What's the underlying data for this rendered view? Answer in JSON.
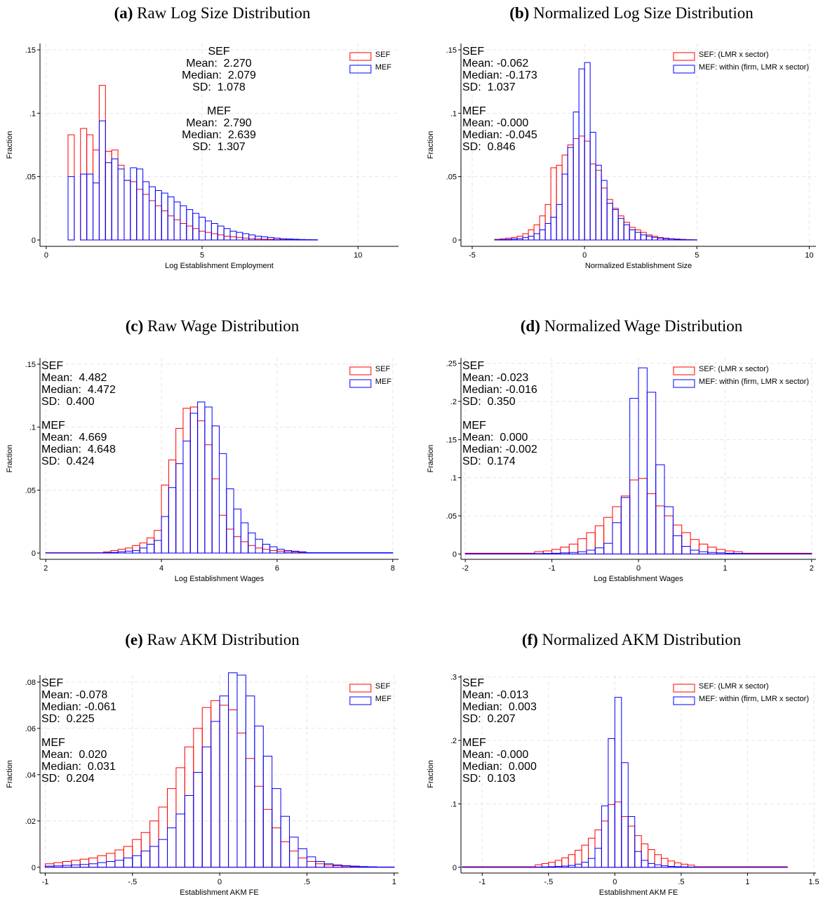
{
  "chart_data": [
    {
      "type": "histogram",
      "label": "(a)",
      "title": "Raw Log Size Distribution",
      "xlabel": "Log Establishment Employment",
      "ylabel": "Fraction",
      "xlim": [
        -0.2,
        11.3
      ],
      "ylim": [
        -0.005,
        0.155
      ],
      "xticks": [
        0,
        5,
        10
      ],
      "yticks": [
        0,
        {
          "value": 0.05,
          "label": ".05"
        },
        {
          "value": 0.1,
          "label": ".1"
        },
        {
          "value": 0.15,
          "label": ".15"
        }
      ],
      "grid": true,
      "legend_position": "top-right",
      "bins": [
        0.7,
        0.9,
        1.1,
        1.3,
        1.5,
        1.7,
        1.9,
        2.1,
        2.3,
        2.5,
        2.7,
        2.9,
        3.1,
        3.3,
        3.5,
        3.7,
        3.9,
        4.1,
        4.3,
        4.5,
        4.7,
        4.9,
        5.1,
        5.3,
        5.5,
        5.7,
        5.9,
        6.1,
        6.3,
        6.5,
        6.7,
        6.9,
        7.1,
        7.3,
        7.5,
        7.7,
        7.9,
        8.1,
        8.3,
        8.5,
        8.7
      ],
      "series": [
        {
          "name": "SEF",
          "color": "#ff0000",
          "values": [
            0.083,
            0,
            0.088,
            0.083,
            0.071,
            0.122,
            0.07,
            0.071,
            0.059,
            0.047,
            0.046,
            0.04,
            0.036,
            0.031,
            0.027,
            0.023,
            0.019,
            0.016,
            0.013,
            0.011,
            0.009,
            0.007,
            0.006,
            0.005,
            0.004,
            0.003,
            0.0025,
            0.002,
            0.0015,
            0.001,
            0.0008,
            0.0006,
            0.0005,
            0.0004,
            0.0003,
            0.0002,
            0.0002,
            0.0001,
            0.0001,
            0.0001
          ]
        },
        {
          "name": "MEF",
          "color": "#0000ff",
          "values": [
            0.05,
            0,
            0.052,
            0.052,
            0.045,
            0.094,
            0.061,
            0.064,
            0.056,
            0.047,
            0.057,
            0.056,
            0.046,
            0.042,
            0.039,
            0.037,
            0.034,
            0.03,
            0.027,
            0.024,
            0.021,
            0.018,
            0.015,
            0.013,
            0.011,
            0.009,
            0.007,
            0.006,
            0.005,
            0.004,
            0.003,
            0.0025,
            0.002,
            0.0015,
            0.001,
            0.0008,
            0.0006,
            0.0004,
            0.0003,
            0.0002
          ]
        }
      ],
      "annotations": [
        {
          "lines": [
            "SEF",
            "Mean:  2.270",
            "Median:  2.079",
            "SD:  1.078"
          ]
        },
        {
          "lines": [
            "MEF",
            "Mean:  2.790",
            "Median:  2.639",
            "SD:  1.307"
          ]
        }
      ]
    },
    {
      "type": "histogram",
      "label": "(b)",
      "title": "Normalized Log Size Distribution",
      "xlabel": "Normalized Establishment Size",
      "ylabel": "Fraction",
      "xlim": [
        -5.5,
        10.3
      ],
      "ylim": [
        -0.005,
        0.155
      ],
      "xticks": [
        -5,
        0,
        5,
        10
      ],
      "yticks": [
        0,
        {
          "value": 0.05,
          "label": ".05"
        },
        {
          "value": 0.1,
          "label": ".1"
        },
        {
          "value": 0.15,
          "label": ".15"
        }
      ],
      "grid": true,
      "legend_position": "top-right",
      "bins": [
        -4,
        -3.75,
        -3.5,
        -3.25,
        -3,
        -2.75,
        -2.5,
        -2.25,
        -2,
        -1.75,
        -1.5,
        -1.25,
        -1,
        -0.75,
        -0.5,
        -0.25,
        0,
        0.25,
        0.5,
        0.75,
        1,
        1.25,
        1.5,
        1.75,
        2,
        2.25,
        2.5,
        2.75,
        3,
        3.25,
        3.5,
        3.75,
        4,
        4.25,
        4.5,
        4.75,
        5
      ],
      "series": [
        {
          "name": "SEF: (LMR x sector)",
          "color": "#ff0000",
          "values": [
            0.0005,
            0.001,
            0.0015,
            0.002,
            0.003,
            0.005,
            0.008,
            0.012,
            0.019,
            0.028,
            0.057,
            0.059,
            0.067,
            0.075,
            0.08,
            0.082,
            0.078,
            0.06,
            0.055,
            0.041,
            0.032,
            0.025,
            0.019,
            0.014,
            0.01,
            0.008,
            0.006,
            0.004,
            0.003,
            0.002,
            0.0015,
            0.001,
            0.0008,
            0.0005,
            0.0003,
            0.0002
          ]
        },
        {
          "name": "MEF: within (firm, LMR x sector)",
          "color": "#0000ff",
          "values": [
            0.0002,
            0.0003,
            0.0005,
            0.0008,
            0.001,
            0.002,
            0.003,
            0.005,
            0.008,
            0.013,
            0.018,
            0.028,
            0.052,
            0.073,
            0.101,
            0.135,
            0.14,
            0.085,
            0.059,
            0.047,
            0.029,
            0.024,
            0.017,
            0.012,
            0.008,
            0.006,
            0.004,
            0.003,
            0.002,
            0.0015,
            0.001,
            0.0008,
            0.0005,
            0.0003,
            0.0002,
            0.0001
          ]
        }
      ],
      "annotations": [
        {
          "lines": [
            "SEF",
            "Mean: -0.062",
            "Median: -0.173",
            "SD:  1.037"
          ]
        },
        {
          "lines": [
            "MEF",
            "Mean: -0.000",
            "Median: -0.045",
            "SD:  0.846"
          ]
        }
      ]
    },
    {
      "type": "histogram",
      "label": "(c)",
      "title": "Raw Wage Distribution",
      "xlabel": "Log Establishment Wages",
      "ylabel": "Fraction",
      "xlim": [
        1.9,
        8.1
      ],
      "ylim": [
        -0.005,
        0.155
      ],
      "xticks": [
        2,
        4,
        6,
        8
      ],
      "yticks": [
        0,
        {
          "value": 0.05,
          "label": ".05"
        },
        {
          "value": 0.1,
          "label": ".1"
        },
        {
          "value": 0.15,
          "label": ".15"
        }
      ],
      "grid": true,
      "legend_position": "top-right",
      "bins": [
        2,
        3,
        3.125,
        3.25,
        3.375,
        3.5,
        3.625,
        3.75,
        3.875,
        4,
        4.125,
        4.25,
        4.375,
        4.5,
        4.625,
        4.75,
        4.875,
        5,
        5.125,
        5.25,
        5.375,
        5.5,
        5.625,
        5.75,
        5.875,
        6,
        6.125,
        6.25,
        6.375,
        6.5,
        8
      ],
      "series": [
        {
          "name": "SEF",
          "color": "#ff0000",
          "values": [
            0.0003,
            0.001,
            0.002,
            0.003,
            0.004,
            0.006,
            0.008,
            0.012,
            0.018,
            0.054,
            0.074,
            0.099,
            0.115,
            0.116,
            0.105,
            0.086,
            0.059,
            0.03,
            0.019,
            0.013,
            0.009,
            0.006,
            0.004,
            0.003,
            0.002,
            0.0015,
            0.001,
            0.0008,
            0.0005,
            0.0002
          ]
        },
        {
          "name": "MEF",
          "color": "#0000ff",
          "values": [
            0.0001,
            0.0003,
            0.0005,
            0.001,
            0.0015,
            0.002,
            0.004,
            0.007,
            0.01,
            0.029,
            0.052,
            0.071,
            0.089,
            0.111,
            0.12,
            0.116,
            0.101,
            0.079,
            0.051,
            0.035,
            0.024,
            0.016,
            0.011,
            0.007,
            0.005,
            0.003,
            0.002,
            0.0015,
            0.001,
            0.0003
          ]
        }
      ],
      "annotations": [
        {
          "lines": [
            "SEF",
            "Mean:  4.482",
            "Median:  4.472",
            "SD:  0.400"
          ]
        },
        {
          "lines": [
            "MEF",
            "Mean:  4.669",
            "Median:  4.648",
            "SD:  0.424"
          ]
        }
      ]
    },
    {
      "type": "histogram",
      "label": "(d)",
      "title": "Normalized Wage Distribution",
      "xlabel": "Log Establishment Wages",
      "ylabel": "Fraction",
      "xlim": [
        -2.05,
        2.05
      ],
      "ylim": [
        -0.007,
        0.257
      ],
      "xticks": [
        -2,
        -1,
        0,
        1,
        2
      ],
      "yticks": [
        0,
        {
          "value": 0.05,
          "label": ".05"
        },
        {
          "value": 0.1,
          "label": ".1"
        },
        {
          "value": 0.15,
          "label": ".15"
        },
        {
          "value": 0.2,
          "label": ".2"
        },
        {
          "value": 0.25,
          "label": ".25"
        }
      ],
      "grid": true,
      "legend_position": "top-right",
      "bins": [
        -2,
        -1.2,
        -1.1,
        -1,
        -0.9,
        -0.8,
        -0.7,
        -0.6,
        -0.5,
        -0.4,
        -0.3,
        -0.2,
        -0.1,
        0,
        0.1,
        0.2,
        0.3,
        0.4,
        0.5,
        0.6,
        0.7,
        0.8,
        0.9,
        1,
        1.1,
        1.2,
        2
      ],
      "series": [
        {
          "name": "SEF: (LMR x sector)",
          "color": "#ff0000",
          "values": [
            0.001,
            0.003,
            0.004,
            0.006,
            0.009,
            0.013,
            0.02,
            0.028,
            0.037,
            0.048,
            0.062,
            0.076,
            0.097,
            0.099,
            0.079,
            0.063,
            0.05,
            0.038,
            0.028,
            0.019,
            0.013,
            0.009,
            0.006,
            0.004,
            0.003,
            0.001
          ]
        },
        {
          "name": "MEF: within (firm, LMR x sector)",
          "color": "#0000ff",
          "values": [
            0.0003,
            0.0005,
            0.0007,
            0.001,
            0.0015,
            0.002,
            0.003,
            0.005,
            0.008,
            0.014,
            0.041,
            0.074,
            0.204,
            0.244,
            0.212,
            0.117,
            0.062,
            0.024,
            0.01,
            0.005,
            0.003,
            0.002,
            0.0015,
            0.001,
            0.0007,
            0.0003
          ]
        }
      ],
      "annotations": [
        {
          "lines": [
            "SEF",
            "Mean: -0.023",
            "Median: -0.016",
            "SD:  0.350"
          ]
        },
        {
          "lines": [
            "MEF",
            "Mean:  0.000",
            "Median: -0.002",
            "SD:  0.174"
          ]
        }
      ]
    },
    {
      "type": "histogram",
      "label": "(e)",
      "title": "Raw AKM Distribution",
      "xlabel": "Establishment AKM FE",
      "ylabel": "Fraction",
      "xlim": [
        -1.03,
        1.025
      ],
      "ylim": [
        -0.0025,
        0.083
      ],
      "xticks": [
        -1,
        {
          "value": -0.5,
          "label": "-.5"
        },
        0,
        {
          "value": 0.5,
          "label": ".5"
        },
        1
      ],
      "yticks": [
        0,
        {
          "value": 0.02,
          "label": ".02"
        },
        {
          "value": 0.04,
          "label": ".04"
        },
        {
          "value": 0.06,
          "label": ".06"
        },
        {
          "value": 0.08,
          "label": ".08"
        }
      ],
      "grid": true,
      "legend_position": "top-right",
      "bins": [
        -1,
        -0.95,
        -0.9,
        -0.85,
        -0.8,
        -0.75,
        -0.7,
        -0.65,
        -0.6,
        -0.55,
        -0.5,
        -0.45,
        -0.4,
        -0.35,
        -0.3,
        -0.25,
        -0.2,
        -0.15,
        -0.1,
        -0.05,
        0,
        0.05,
        0.1,
        0.15,
        0.2,
        0.25,
        0.3,
        0.35,
        0.4,
        0.45,
        0.5,
        0.55,
        0.6,
        0.65,
        0.7,
        0.75,
        0.8,
        0.85,
        0.9,
        0.95,
        1
      ],
      "series": [
        {
          "name": "SEF",
          "color": "#ff0000",
          "values": [
            0.0015,
            0.002,
            0.0025,
            0.003,
            0.0035,
            0.004,
            0.005,
            0.006,
            0.0075,
            0.009,
            0.012,
            0.015,
            0.02,
            0.026,
            0.034,
            0.043,
            0.052,
            0.06,
            0.069,
            0.072,
            0.07,
            0.068,
            0.058,
            0.047,
            0.035,
            0.025,
            0.017,
            0.011,
            0.007,
            0.004,
            0.0025,
            0.0015,
            0.001,
            0.0007,
            0.0005,
            0.0003,
            0.0002,
            0.0001,
            0.0001,
            0.0001
          ]
        },
        {
          "name": "MEF",
          "color": "#0000ff",
          "values": [
            0.0005,
            0.0006,
            0.0008,
            0.001,
            0.0012,
            0.0015,
            0.002,
            0.0025,
            0.003,
            0.004,
            0.005,
            0.007,
            0.009,
            0.012,
            0.017,
            0.023,
            0.031,
            0.041,
            0.052,
            0.063,
            0.074,
            0.084,
            0.083,
            0.074,
            0.061,
            0.048,
            0.034,
            0.022,
            0.013,
            0.008,
            0.0045,
            0.0025,
            0.0015,
            0.001,
            0.0007,
            0.0005,
            0.0003,
            0.0002,
            0.0001,
            0.0001
          ]
        }
      ],
      "annotations": [
        {
          "lines": [
            "SEF",
            "Mean: -0.078",
            "Median: -0.061",
            "SD:  0.225"
          ]
        },
        {
          "lines": [
            "MEF",
            "Mean:  0.020",
            "Median:  0.031",
            "SD:  0.204"
          ]
        }
      ]
    },
    {
      "type": "histogram",
      "label": "(f)",
      "title": "Normalized AKM Distribution",
      "xlabel": "Establishment AKM FE",
      "ylabel": "Fraction",
      "xlim": [
        -1.16,
        1.516
      ],
      "ylim": [
        -0.009,
        0.303
      ],
      "xticks": [
        -1,
        {
          "value": -0.5,
          "label": "-.5"
        },
        0,
        {
          "value": 0.5,
          "label": ".5"
        },
        1,
        1.5
      ],
      "yticks": [
        0,
        {
          "value": 0.1,
          "label": ".1"
        },
        {
          "value": 0.2,
          "label": ".2"
        },
        {
          "value": 0.3,
          "label": ".3"
        }
      ],
      "grid": true,
      "legend_position": "top-right",
      "bins": [
        -1.15,
        -0.6,
        -0.55,
        -0.5,
        -0.45,
        -0.4,
        -0.35,
        -0.3,
        -0.25,
        -0.2,
        -0.15,
        -0.1,
        -0.05,
        0,
        0.05,
        0.1,
        0.15,
        0.2,
        0.25,
        0.3,
        0.35,
        0.4,
        0.45,
        0.5,
        0.55,
        0.6,
        1.3
      ],
      "series": [
        {
          "name": "SEF: (LMR x sector)",
          "color": "#ff0000",
          "values": [
            0.001,
            0.004,
            0.006,
            0.008,
            0.011,
            0.015,
            0.02,
            0.027,
            0.035,
            0.046,
            0.059,
            0.073,
            0.099,
            0.103,
            0.08,
            0.065,
            0.05,
            0.037,
            0.028,
            0.02,
            0.014,
            0.01,
            0.007,
            0.005,
            0.0035,
            0.001
          ]
        },
        {
          "name": "MEF: within (firm, LMR x sector)",
          "color": "#0000ff",
          "values": [
            0.0002,
            0.0005,
            0.0007,
            0.001,
            0.0015,
            0.002,
            0.003,
            0.005,
            0.008,
            0.014,
            0.03,
            0.097,
            0.203,
            0.268,
            0.165,
            0.08,
            0.025,
            0.011,
            0.006,
            0.004,
            0.0025,
            0.0015,
            0.001,
            0.0007,
            0.0005,
            0.0002
          ]
        }
      ],
      "annotations": [
        {
          "lines": [
            "SEF",
            "Mean: -0.013",
            "Median:  0.003",
            "SD:  0.207"
          ]
        },
        {
          "lines": [
            "MEF",
            "Mean: -0.000",
            "Median:  0.000",
            "SD:  0.103"
          ]
        }
      ]
    }
  ]
}
